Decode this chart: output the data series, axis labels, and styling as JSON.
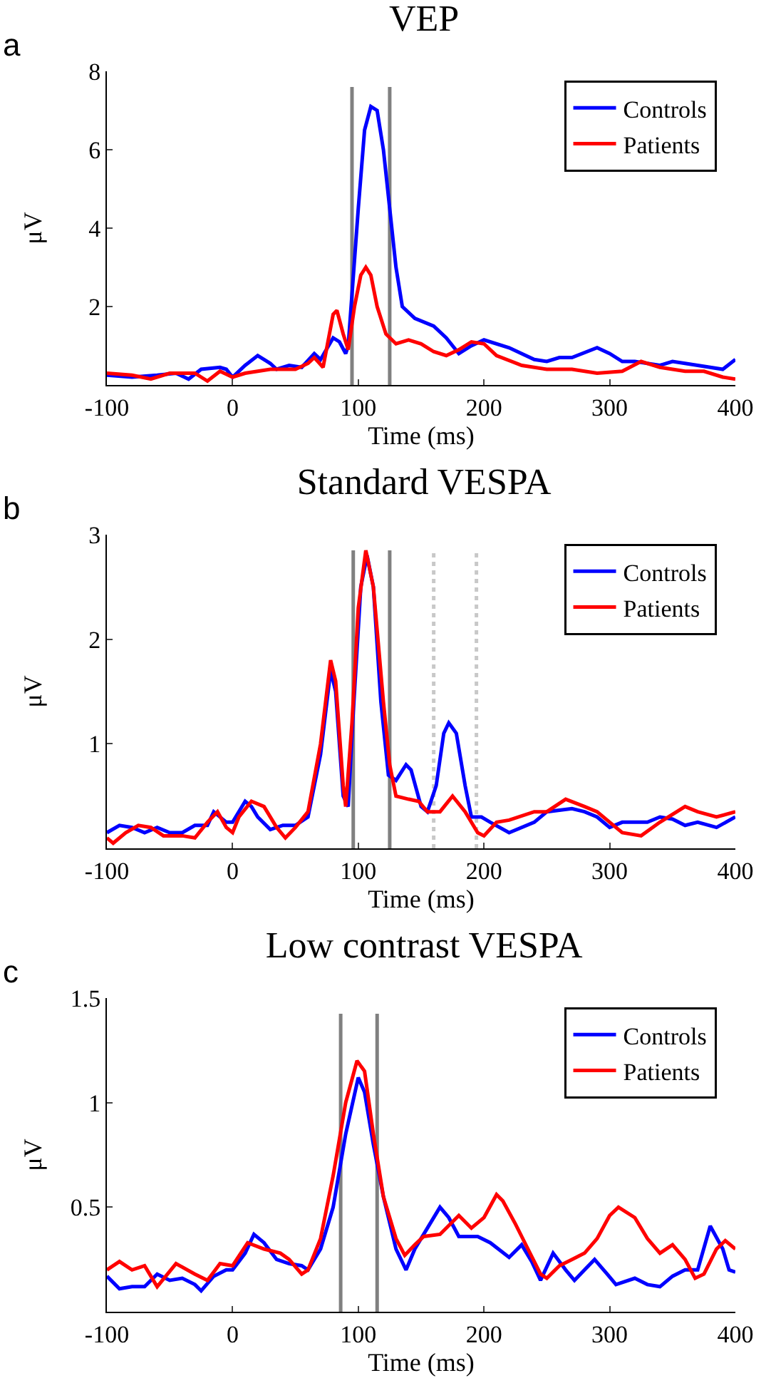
{
  "chart_data": [
    {
      "type": "line",
      "title": "VEP",
      "xlabel": "Time (ms)",
      "ylabel": "μV",
      "annotations": [
        "a"
      ],
      "xlim": [
        -100,
        400
      ],
      "xticks": [
        -100,
        0,
        100,
        200,
        300,
        400
      ],
      "ylim": [
        0,
        8
      ],
      "yticks": [
        2,
        4,
        6,
        8
      ],
      "grid": false,
      "legend": "top right",
      "line_style": "solid",
      "marker": "none",
      "ref_lines": [
        {
          "axis": "x",
          "value": 95,
          "color": "#808080"
        },
        {
          "axis": "x",
          "value": 125,
          "color": "#808080"
        }
      ],
      "series": [
        {
          "name": "Controls",
          "color": "#0000ff",
          "x": [
            -100,
            -80,
            -60,
            -45,
            -35,
            -25,
            -10,
            -5,
            0,
            10,
            20,
            30,
            35,
            45,
            55,
            65,
            70,
            80,
            85,
            90,
            92,
            100,
            105,
            110,
            115,
            120,
            125,
            130,
            135,
            145,
            160,
            170,
            180,
            190,
            200,
            220,
            240,
            250,
            260,
            270,
            290,
            300,
            310,
            320,
            340,
            350,
            360,
            370,
            390,
            400
          ],
          "values": [
            0.25,
            0.2,
            0.25,
            0.3,
            0.15,
            0.4,
            0.45,
            0.4,
            0.2,
            0.5,
            0.75,
            0.55,
            0.4,
            0.5,
            0.45,
            0.8,
            0.65,
            1.2,
            1.1,
            0.8,
            1.0,
            4.5,
            6.5,
            7.1,
            7.0,
            6.0,
            4.5,
            3.0,
            2.0,
            1.7,
            1.5,
            1.2,
            0.8,
            1.0,
            1.15,
            0.95,
            0.65,
            0.6,
            0.7,
            0.7,
            0.95,
            0.8,
            0.6,
            0.6,
            0.5,
            0.6,
            0.55,
            0.5,
            0.4,
            0.65
          ]
        },
        {
          "name": "Patients",
          "color": "#ff0000",
          "x": [
            -100,
            -80,
            -65,
            -50,
            -30,
            -20,
            -10,
            0,
            10,
            30,
            50,
            60,
            65,
            72,
            80,
            83,
            88,
            92,
            97,
            102,
            106,
            110,
            115,
            122,
            130,
            140,
            150,
            160,
            170,
            180,
            190,
            200,
            210,
            230,
            250,
            270,
            290,
            310,
            325,
            340,
            360,
            375,
            390,
            400
          ],
          "values": [
            0.3,
            0.25,
            0.15,
            0.3,
            0.3,
            0.1,
            0.35,
            0.2,
            0.3,
            0.4,
            0.4,
            0.55,
            0.7,
            0.45,
            1.8,
            1.9,
            1.3,
            0.9,
            2.0,
            2.8,
            3.0,
            2.8,
            2.0,
            1.3,
            1.05,
            1.15,
            1.05,
            0.85,
            0.75,
            0.9,
            1.1,
            1.05,
            0.75,
            0.5,
            0.4,
            0.4,
            0.3,
            0.35,
            0.6,
            0.45,
            0.35,
            0.35,
            0.2,
            0.15
          ]
        }
      ]
    },
    {
      "type": "line",
      "title": "Standard VESPA",
      "xlabel": "Time (ms)",
      "ylabel": "μV",
      "annotations": [
        "b"
      ],
      "xlim": [
        -100,
        400
      ],
      "xticks": [
        -100,
        0,
        100,
        200,
        300,
        400
      ],
      "ylim": [
        0,
        3
      ],
      "yticks": [
        1,
        2,
        3
      ],
      "grid": false,
      "legend": "top right",
      "line_style": "solid",
      "marker": "none",
      "ref_lines": [
        {
          "axis": "x",
          "value": 96,
          "color": "#808080"
        },
        {
          "axis": "x",
          "value": 125,
          "color": "#808080"
        },
        {
          "axis": "x",
          "value": 160,
          "color": "#c8c8c8",
          "line_style": "dotted"
        },
        {
          "axis": "x",
          "value": 194,
          "color": "#c8c8c8",
          "line_style": "dotted"
        }
      ],
      "series": [
        {
          "name": "Controls",
          "color": "#0000ff",
          "x": [
            -100,
            -90,
            -80,
            -70,
            -60,
            -50,
            -40,
            -30,
            -20,
            -15,
            -5,
            0,
            10,
            15,
            20,
            30,
            40,
            50,
            60,
            70,
            78,
            82,
            88,
            92,
            96,
            102,
            107,
            112,
            118,
            124,
            130,
            138,
            142,
            150,
            155,
            162,
            168,
            172,
            178,
            185,
            190,
            198,
            205,
            220,
            240,
            250,
            270,
            280,
            290,
            300,
            310,
            330,
            340,
            350,
            360,
            370,
            385,
            400
          ],
          "values": [
            0.15,
            0.22,
            0.2,
            0.15,
            0.2,
            0.15,
            0.15,
            0.22,
            0.22,
            0.35,
            0.25,
            0.25,
            0.45,
            0.4,
            0.3,
            0.18,
            0.22,
            0.22,
            0.3,
            0.9,
            1.7,
            1.5,
            0.5,
            0.4,
            1.3,
            2.5,
            2.8,
            2.5,
            1.4,
            0.7,
            0.65,
            0.8,
            0.75,
            0.4,
            0.35,
            0.6,
            1.1,
            1.2,
            1.1,
            0.6,
            0.3,
            0.3,
            0.25,
            0.15,
            0.25,
            0.35,
            0.38,
            0.35,
            0.3,
            0.2,
            0.25,
            0.25,
            0.3,
            0.28,
            0.22,
            0.25,
            0.2,
            0.3
          ]
        },
        {
          "name": "Patients",
          "color": "#ff0000",
          "x": [
            -100,
            -95,
            -85,
            -75,
            -65,
            -55,
            -40,
            -30,
            -20,
            -12,
            -5,
            0,
            5,
            15,
            25,
            35,
            42,
            50,
            60,
            70,
            78,
            82,
            88,
            90,
            95,
            100,
            106,
            112,
            120,
            125,
            130,
            140,
            148,
            155,
            165,
            175,
            185,
            195,
            200,
            210,
            220,
            240,
            250,
            265,
            280,
            290,
            300,
            310,
            325,
            340,
            360,
            370,
            385,
            400
          ],
          "values": [
            0.1,
            0.05,
            0.15,
            0.22,
            0.2,
            0.12,
            0.12,
            0.1,
            0.25,
            0.35,
            0.2,
            0.15,
            0.3,
            0.45,
            0.4,
            0.2,
            0.1,
            0.2,
            0.35,
            1.0,
            1.8,
            1.6,
            0.6,
            0.4,
            1.2,
            2.3,
            2.85,
            2.5,
            1.4,
            0.8,
            0.5,
            0.47,
            0.45,
            0.35,
            0.35,
            0.5,
            0.35,
            0.15,
            0.12,
            0.25,
            0.27,
            0.35,
            0.35,
            0.47,
            0.4,
            0.35,
            0.25,
            0.15,
            0.12,
            0.25,
            0.4,
            0.35,
            0.3,
            0.35
          ]
        }
      ]
    },
    {
      "type": "line",
      "title": "Low contrast VESPA",
      "xlabel": "Time (ms)",
      "ylabel": "μV",
      "annotations": [
        "c"
      ],
      "xlim": [
        -100,
        400
      ],
      "xticks": [
        -100,
        0,
        100,
        200,
        300,
        400
      ],
      "ylim": [
        0,
        1.5
      ],
      "yticks": [
        0.5,
        1,
        1.5
      ],
      "grid": false,
      "legend": "top right",
      "line_style": "solid",
      "marker": "none",
      "ref_lines": [
        {
          "axis": "x",
          "value": 86,
          "color": "#808080"
        },
        {
          "axis": "x",
          "value": 115,
          "color": "#808080"
        }
      ],
      "series": [
        {
          "name": "Controls",
          "color": "#0000ff",
          "x": [
            -100,
            -90,
            -80,
            -70,
            -60,
            -50,
            -40,
            -30,
            -25,
            -15,
            -5,
            0,
            10,
            17,
            25,
            35,
            45,
            55,
            60,
            70,
            80,
            90,
            100,
            105,
            112,
            120,
            130,
            138,
            145,
            155,
            165,
            172,
            180,
            195,
            205,
            220,
            230,
            238,
            245,
            255,
            265,
            272,
            280,
            288,
            298,
            305,
            320,
            330,
            340,
            350,
            360,
            370,
            380,
            390,
            395,
            400
          ],
          "values": [
            0.17,
            0.11,
            0.12,
            0.12,
            0.18,
            0.15,
            0.16,
            0.13,
            0.1,
            0.17,
            0.2,
            0.2,
            0.28,
            0.37,
            0.33,
            0.25,
            0.23,
            0.22,
            0.2,
            0.3,
            0.5,
            0.85,
            1.12,
            1.05,
            0.8,
            0.55,
            0.3,
            0.2,
            0.3,
            0.4,
            0.5,
            0.45,
            0.36,
            0.36,
            0.33,
            0.26,
            0.32,
            0.24,
            0.15,
            0.28,
            0.2,
            0.15,
            0.2,
            0.25,
            0.18,
            0.13,
            0.16,
            0.13,
            0.12,
            0.17,
            0.2,
            0.2,
            0.41,
            0.3,
            0.2,
            0.19
          ]
        },
        {
          "name": "Patients",
          "color": "#ff0000",
          "x": [
            -100,
            -90,
            -80,
            -70,
            -60,
            -45,
            -30,
            -20,
            -10,
            0,
            12,
            25,
            38,
            45,
            55,
            60,
            70,
            80,
            90,
            99,
            105,
            112,
            120,
            130,
            137,
            145,
            152,
            165,
            180,
            190,
            200,
            210,
            215,
            225,
            235,
            245,
            250,
            260,
            270,
            280,
            290,
            300,
            307,
            320,
            330,
            340,
            350,
            360,
            368,
            375,
            385,
            392,
            400
          ],
          "values": [
            0.2,
            0.24,
            0.2,
            0.22,
            0.12,
            0.23,
            0.18,
            0.15,
            0.23,
            0.22,
            0.33,
            0.3,
            0.28,
            0.25,
            0.18,
            0.2,
            0.35,
            0.65,
            1.0,
            1.2,
            1.15,
            0.85,
            0.55,
            0.35,
            0.27,
            0.32,
            0.36,
            0.37,
            0.46,
            0.4,
            0.45,
            0.56,
            0.53,
            0.42,
            0.3,
            0.18,
            0.16,
            0.22,
            0.25,
            0.28,
            0.35,
            0.46,
            0.5,
            0.45,
            0.35,
            0.28,
            0.32,
            0.25,
            0.16,
            0.18,
            0.3,
            0.34,
            0.3
          ]
        }
      ]
    }
  ]
}
